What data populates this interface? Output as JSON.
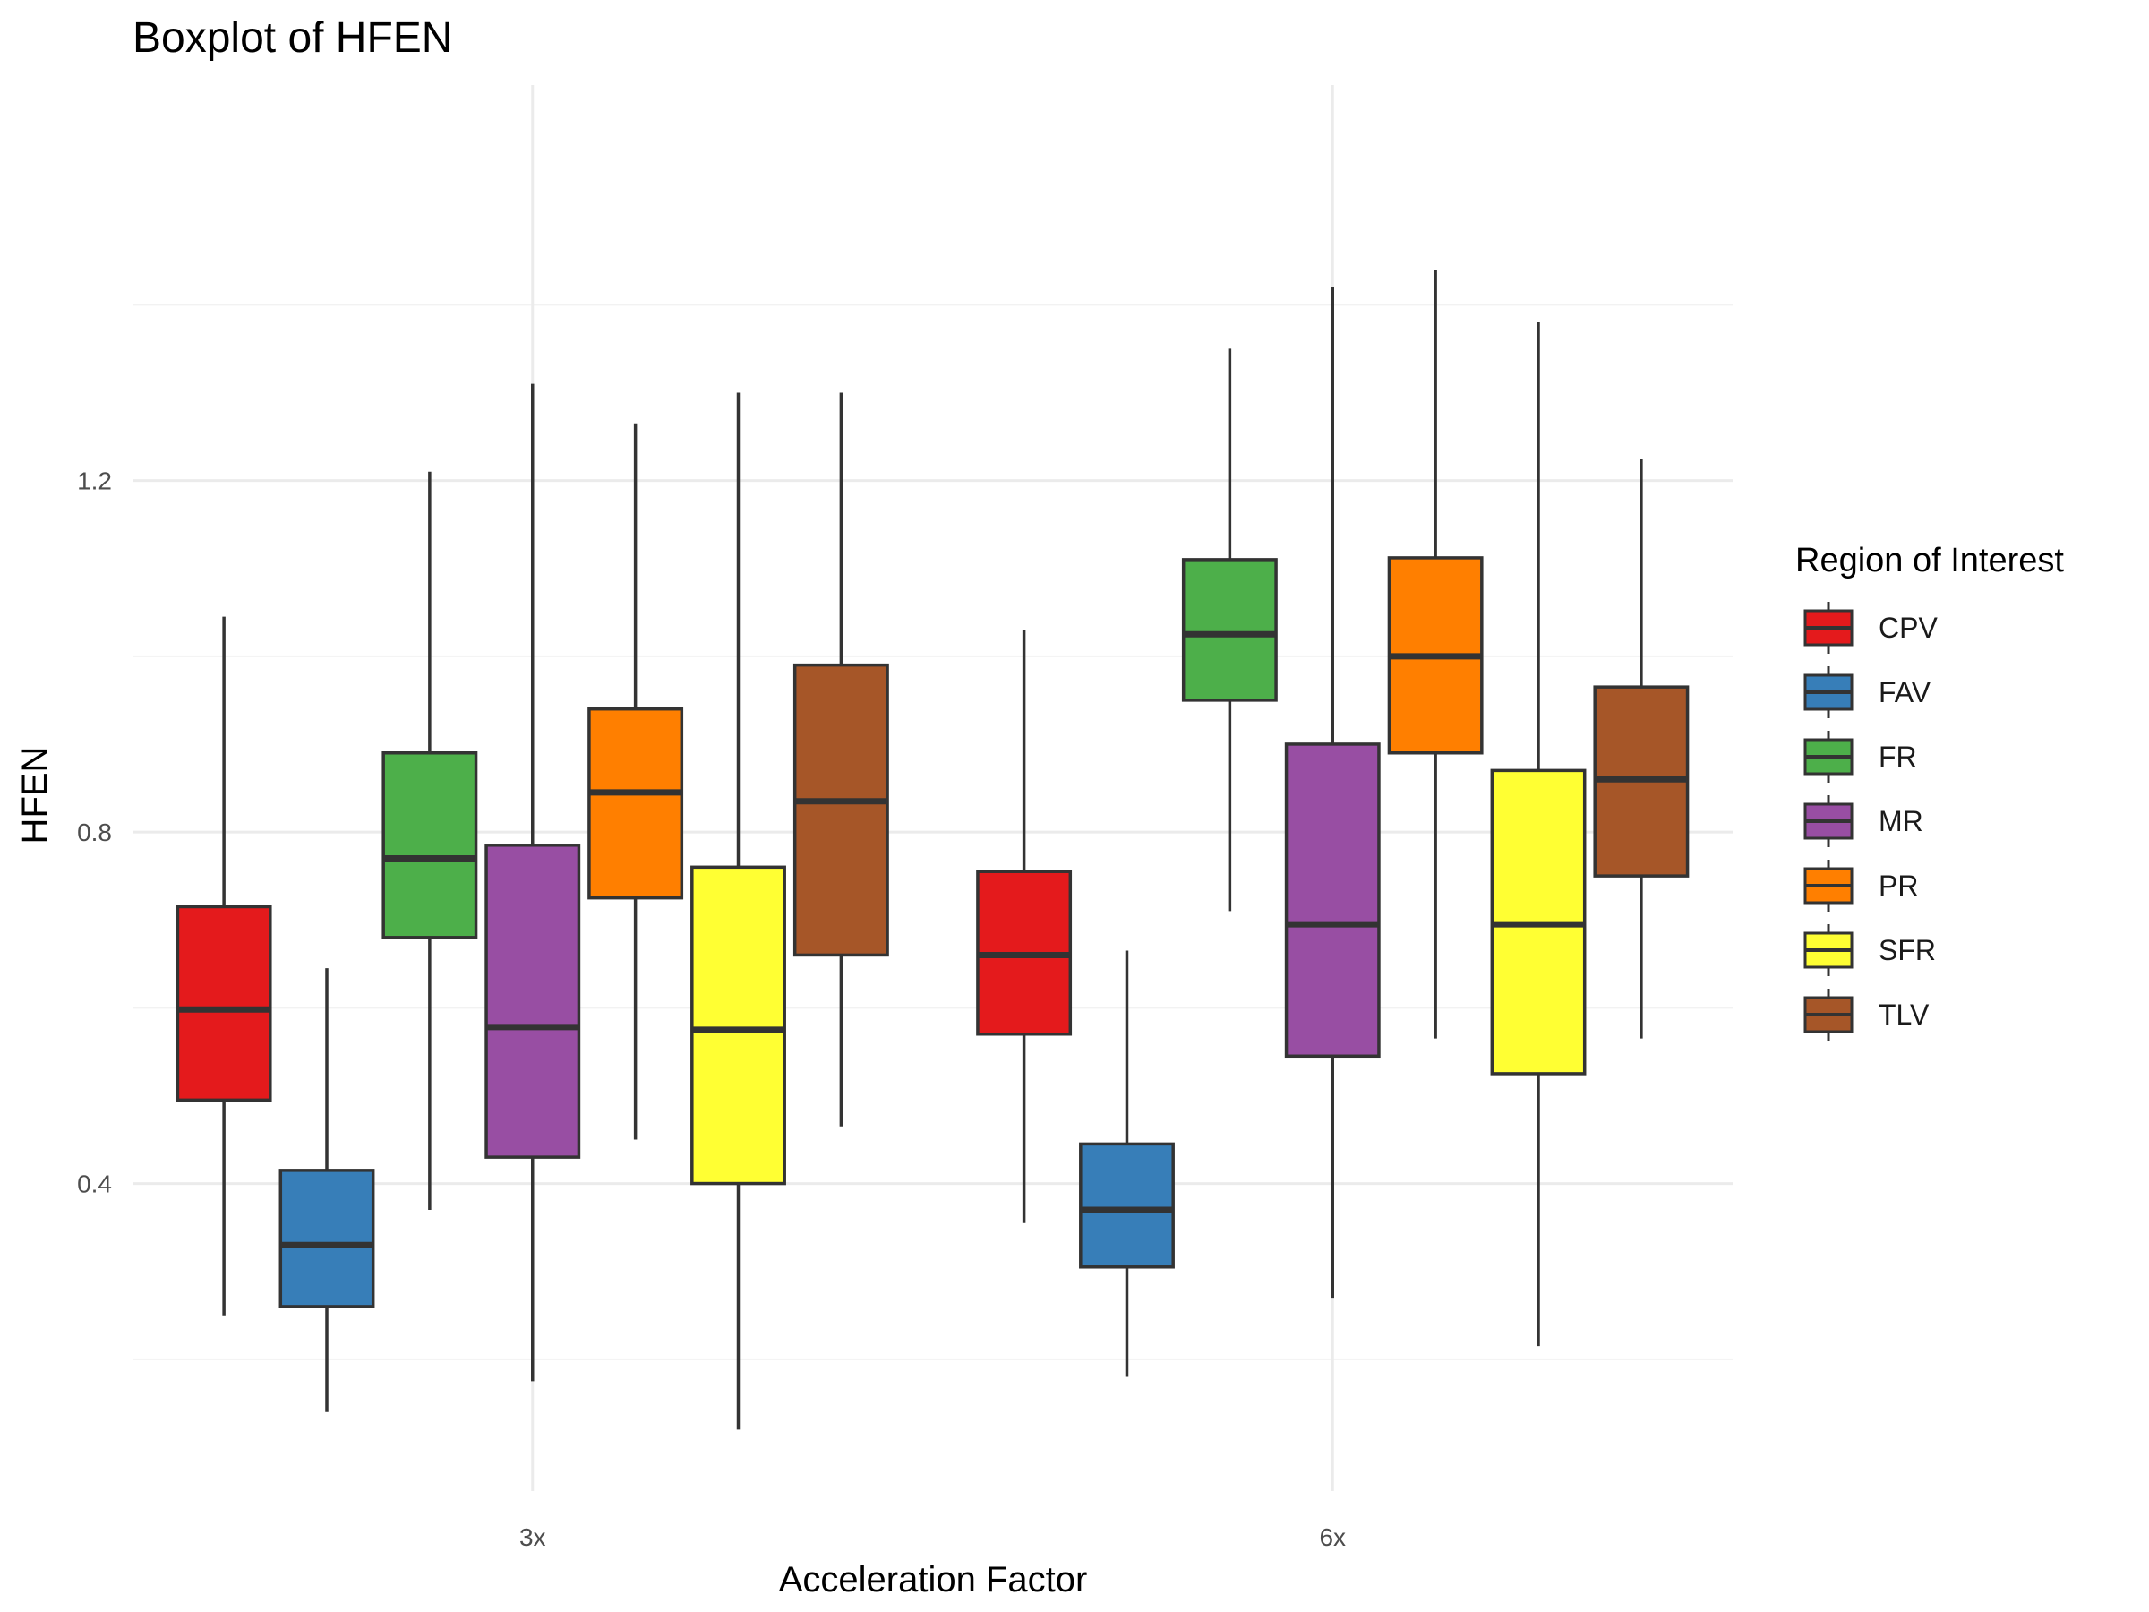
{
  "chart_data": {
    "type": "boxplot",
    "title": "Boxplot of HFEN",
    "xlabel": "Acceleration Factor",
    "ylabel": "HFEN",
    "ylim": [
      0.05,
      1.65
    ],
    "y_ticks": [
      0.4,
      0.8,
      1.2
    ],
    "y_minor_ticks": [
      0.2,
      0.6,
      1.0,
      1.4
    ],
    "categories": [
      "3x",
      "6x"
    ],
    "grid": true,
    "legend": {
      "title": "Region of Interest",
      "position": "right"
    },
    "series": [
      {
        "name": "CPV",
        "color": "#e41a1c",
        "boxes": [
          {
            "min": 0.25,
            "q1": 0.495,
            "median": 0.598,
            "q3": 0.715,
            "max": 1.045
          },
          {
            "min": 0.355,
            "q1": 0.57,
            "median": 0.66,
            "q3": 0.755,
            "max": 1.03
          }
        ]
      },
      {
        "name": "FAV",
        "color": "#377eb8",
        "boxes": [
          {
            "min": 0.14,
            "q1": 0.26,
            "median": 0.33,
            "q3": 0.415,
            "max": 0.645
          },
          {
            "min": 0.18,
            "q1": 0.305,
            "median": 0.37,
            "q3": 0.445,
            "max": 0.665
          }
        ]
      },
      {
        "name": "FR",
        "color": "#4daf4a",
        "boxes": [
          {
            "min": 0.37,
            "q1": 0.68,
            "median": 0.77,
            "q3": 0.89,
            "max": 1.21
          },
          {
            "min": 0.71,
            "q1": 0.95,
            "median": 1.025,
            "q3": 1.11,
            "max": 1.35
          }
        ]
      },
      {
        "name": "MR",
        "color": "#984ea3",
        "boxes": [
          {
            "min": 0.175,
            "q1": 0.43,
            "median": 0.578,
            "q3": 0.785,
            "max": 1.31
          },
          {
            "min": 0.27,
            "q1": 0.545,
            "median": 0.695,
            "q3": 0.9,
            "max": 1.42
          }
        ]
      },
      {
        "name": "PR",
        "color": "#ff7f00",
        "boxes": [
          {
            "min": 0.45,
            "q1": 0.725,
            "median": 0.845,
            "q3": 0.94,
            "max": 1.265
          },
          {
            "min": 0.565,
            "q1": 0.89,
            "median": 1.0,
            "q3": 1.112,
            "max": 1.44
          }
        ]
      },
      {
        "name": "SFR",
        "color": "#ffff33",
        "boxes": [
          {
            "min": 0.12,
            "q1": 0.4,
            "median": 0.575,
            "q3": 0.76,
            "max": 1.3
          },
          {
            "min": 0.215,
            "q1": 0.525,
            "median": 0.695,
            "q3": 0.87,
            "max": 1.38
          }
        ]
      },
      {
        "name": "TLV",
        "color": "#a65628",
        "boxes": [
          {
            "min": 0.465,
            "q1": 0.66,
            "median": 0.835,
            "q3": 0.99,
            "max": 1.3
          },
          {
            "min": 0.565,
            "q1": 0.75,
            "median": 0.86,
            "q3": 0.965,
            "max": 1.225
          }
        ]
      }
    ]
  }
}
